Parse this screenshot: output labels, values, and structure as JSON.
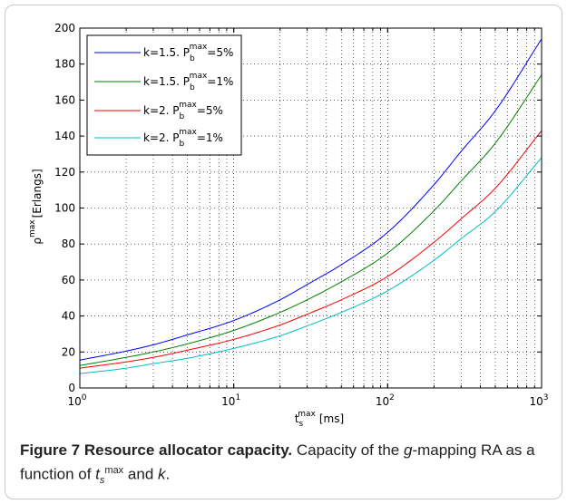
{
  "chart_data": {
    "type": "line",
    "xscale": "log",
    "xlim": [
      1,
      1000
    ],
    "ylim": [
      0,
      200
    ],
    "xlabel_base": "t",
    "xlabel_sub": "s",
    "xlabel_sup": "max",
    "xlabel_unit": "[ms]",
    "ylabel_base": "ρ",
    "ylabel_sup": "max",
    "ylabel_unit": "[Erlangs]",
    "yticks": [
      "0",
      "20",
      "40",
      "60",
      "80",
      "100",
      "120",
      "140",
      "160",
      "180",
      "200"
    ],
    "xticks": [
      {
        "base": "10",
        "exp": "0"
      },
      {
        "base": "10",
        "exp": "1"
      },
      {
        "base": "10",
        "exp": "2"
      },
      {
        "base": "10",
        "exp": "3"
      }
    ],
    "grid": true,
    "legend_position": "top-left",
    "x": [
      1,
      2,
      3,
      5,
      10,
      20,
      30,
      50,
      100,
      200,
      300,
      500,
      1000
    ],
    "series": [
      {
        "legend": {
          "pre": "k=1.5. P",
          "sub": "b",
          "sup": "max",
          "post": "=5%"
        },
        "color": "#0000ff",
        "values": [
          15.5,
          20.5,
          24,
          29.5,
          37.5,
          49,
          57.5,
          68.5,
          86.5,
          113,
          131.5,
          154,
          194
        ]
      },
      {
        "legend": {
          "pre": "k=1.5. P",
          "sub": "b",
          "sup": "max",
          "post": "=1%"
        },
        "color": "#008000",
        "values": [
          12.5,
          17,
          20,
          24.5,
          32,
          42,
          49,
          59,
          75,
          98.5,
          115,
          136,
          174
        ]
      },
      {
        "legend": {
          "pre": "k=2. P",
          "sub": "b",
          "sup": "max",
          "post": "=5%"
        },
        "color": "#ff0000",
        "values": [
          11,
          14.5,
          17,
          21,
          27,
          35,
          41,
          49,
          62,
          81,
          94,
          111,
          143
        ]
      },
      {
        "legend": {
          "pre": "k=2. P",
          "sub": "b",
          "sup": "max",
          "post": "=1%"
        },
        "color": "#00bfbf",
        "values": [
          8,
          11,
          13.5,
          16.5,
          22,
          29,
          34.5,
          42,
          54,
          71,
          83,
          98,
          128
        ]
      }
    ]
  },
  "caption": {
    "label": "Figure 7 Resource allocator capacity.",
    "text_1": " Capacity of the ",
    "g": "g",
    "text_2": "-mapping RA as a function of ",
    "t": "t",
    "s": "s",
    "max": "max",
    "text_3": " and ",
    "k": "k",
    "text_4": "."
  }
}
